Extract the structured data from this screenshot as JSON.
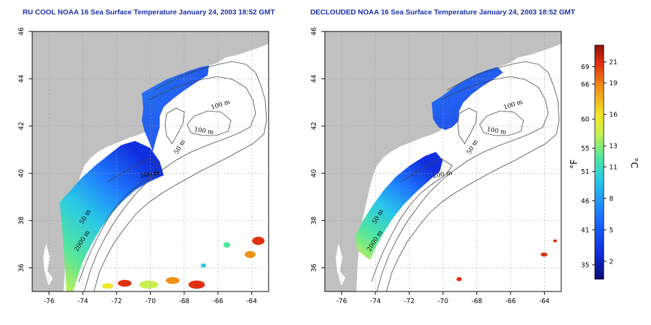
{
  "panels": [
    {
      "id": "left",
      "title": "RU COOL NOAA 16 Sea Surface Temperature January 24, 2003 18:52 GMT",
      "contour_labels": [
        "100 m",
        "100 m",
        "50 m",
        "200 m",
        "50 m",
        "2000 m"
      ]
    },
    {
      "id": "right",
      "title": "DECLOUDED NOAA 16 Sea Surface Temperature January 24, 2003 18:52 GMT",
      "contour_labels": [
        "100 m",
        "100 m",
        "50 m",
        "200 m",
        "50 m",
        "2000 m"
      ]
    }
  ],
  "axes": {
    "lon_ticks": [
      "-76",
      "-74",
      "-72",
      "-70",
      "-68",
      "-66",
      "-64"
    ],
    "lat_ticks": [
      "36",
      "38",
      "40",
      "42",
      "44",
      "46"
    ]
  },
  "colorbar": {
    "unit_f": "°F",
    "unit_c": "°C",
    "f_ticks": [
      "69",
      "66",
      "60",
      "55",
      "51",
      "46",
      "41",
      "35"
    ],
    "c_ticks": [
      "21",
      "19",
      "16",
      "13",
      "11",
      "8",
      "5",
      "2"
    ]
  },
  "colors": {
    "land": "#c0c0c0",
    "title": "#1a2fa8",
    "scale": [
      "#0a0a78",
      "#1030e0",
      "#1e78ff",
      "#28c8e8",
      "#50e6a0",
      "#c8f050",
      "#f0e628",
      "#f09018",
      "#e03010",
      "#901008"
    ]
  }
}
